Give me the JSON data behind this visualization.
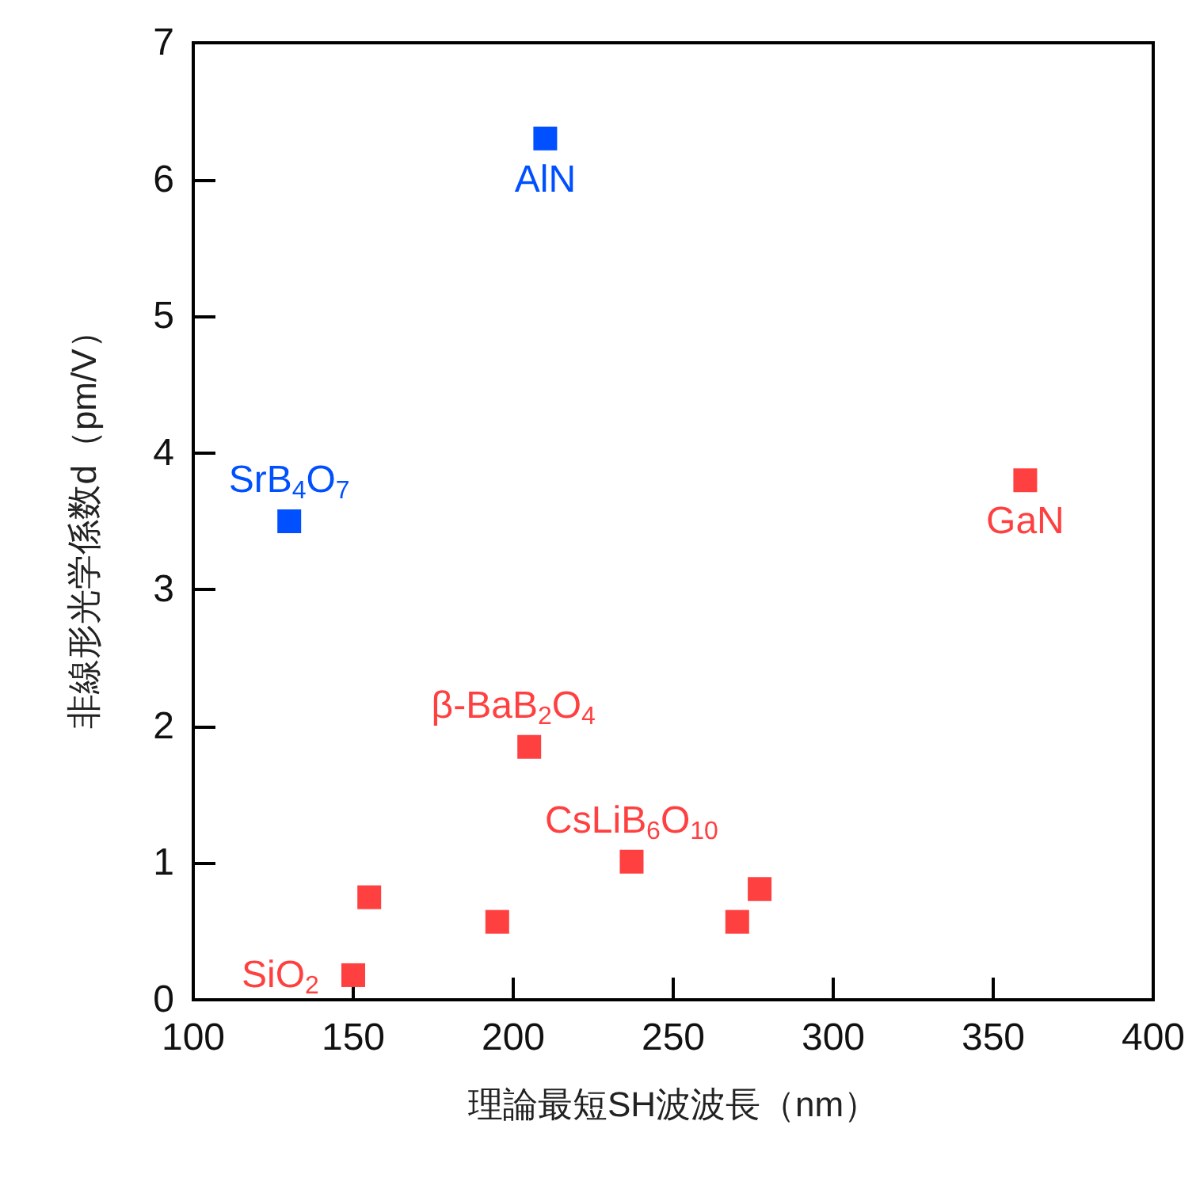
{
  "chart_data": {
    "type": "scatter",
    "xlabel": "理論最短SH波波長（nm）",
    "ylabel": "非線形光学係数d（pm/V）",
    "xlim": [
      100,
      400
    ],
    "xticks": [
      100,
      150,
      200,
      250,
      300,
      350,
      400
    ],
    "ylim": [
      0,
      7
    ],
    "yticks": [
      0,
      1,
      2,
      3,
      4,
      5,
      6,
      7
    ],
    "grid": false,
    "marker": "square",
    "series": [
      {
        "color": "#0050ff",
        "x": [
          210,
          130
        ],
        "values": [
          6.3,
          3.5
        ]
      },
      {
        "color": "#ff4040",
        "x": [
          360
        ],
        "values": [
          3.8
        ]
      },
      {
        "color": "#ff4040",
        "x": [
          150,
          155,
          195,
          205,
          237,
          270,
          277
        ],
        "values": [
          0.18,
          0.75,
          0.57,
          1.85,
          1.01,
          0.57,
          0.81
        ]
      }
    ],
    "annotations": [
      {
        "text": "AlN",
        "x": 210,
        "y": 6.3
      },
      {
        "text": "SrB$_{4}$O$_{7}$",
        "x": 130,
        "y": 3.5
      },
      {
        "text": "GaN",
        "x": 360,
        "y": 3.8
      },
      {
        "text": "β-BaB$_{2}$O$_{4}$",
        "x": 205,
        "y": 1.85
      },
      {
        "text": "CsLiB$_{6}$O$_{10}$",
        "x": 237,
        "y": 1.01
      },
      {
        "text": "SiO$_{2}$",
        "x": 150,
        "y": 0.18
      }
    ]
  }
}
